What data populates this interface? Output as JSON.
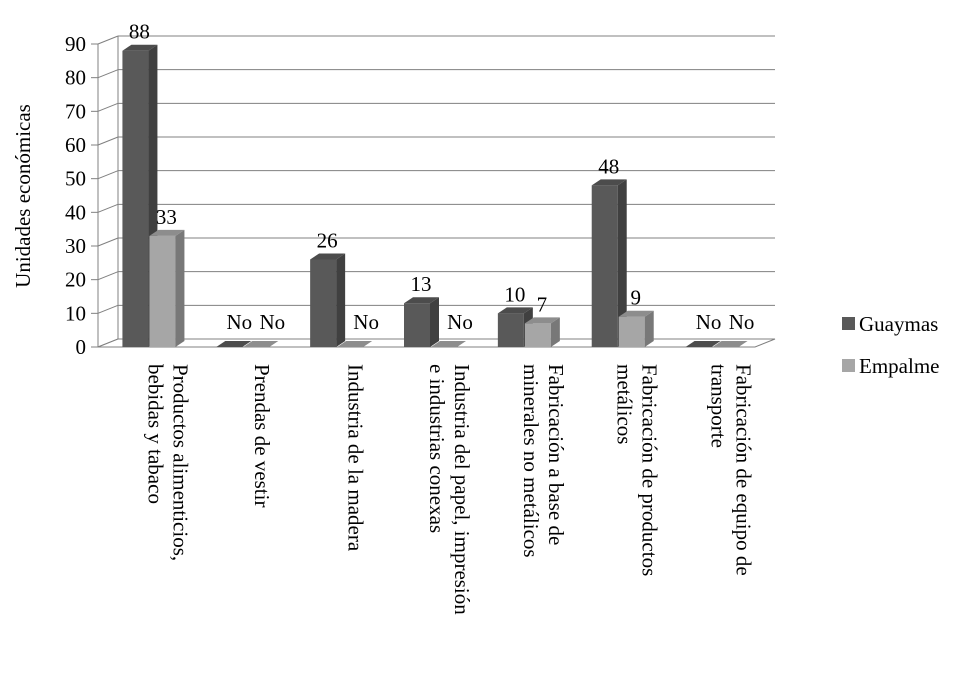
{
  "chart_data": {
    "type": "bar",
    "ylabel": "Unidades económicas",
    "ylim": [
      0,
      90
    ],
    "yticks": [
      "0",
      "10",
      "20",
      "30",
      "40",
      "50",
      "60",
      "70",
      "80",
      "90"
    ],
    "grid": true,
    "legend_position": "right",
    "categories": [
      [
        "Productos alimenticios,",
        "bebidas y tabaco"
      ],
      [
        "Prendas de vestir"
      ],
      [
        "Industria de la madera"
      ],
      [
        "Industria del papel, impresión",
        "e industrias conexas"
      ],
      [
        "Fabricación a base de",
        "minerales no metálicos"
      ],
      [
        "Fabricación de productos",
        "metálicos"
      ],
      [
        "Fabricación de equipo de",
        "transporte"
      ]
    ],
    "series": [
      {
        "name": "Guaymas",
        "color": "#595959",
        "values": [
          88,
          0,
          26,
          13,
          10,
          48,
          0
        ],
        "labels": [
          "88",
          "No",
          "26",
          "13",
          "10",
          "48",
          "No"
        ]
      },
      {
        "name": "Empalme",
        "color": "#a6a6a6",
        "values": [
          33,
          0,
          0,
          0,
          7,
          9,
          0
        ],
        "labels": [
          "33",
          "No",
          "No",
          "No",
          "7",
          "9",
          "No"
        ]
      }
    ]
  }
}
